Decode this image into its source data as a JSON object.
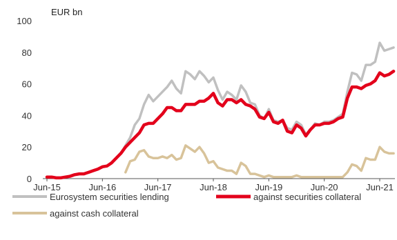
{
  "chart_data": {
    "type": "line",
    "unit_label": "EUR bn",
    "ylim": [
      0,
      100
    ],
    "yticks": [
      0,
      20,
      40,
      60,
      80,
      100
    ],
    "xlim": [
      "2015-06",
      "2021-09"
    ],
    "xticks": [
      {
        "date": "2015-06",
        "label": "Jun-15"
      },
      {
        "date": "2016-06",
        "label": "Jun-16"
      },
      {
        "date": "2017-06",
        "label": "Jun-17"
      },
      {
        "date": "2018-06",
        "label": "Jun-18"
      },
      {
        "date": "2019-06",
        "label": "Jun-19"
      },
      {
        "date": "2020-06",
        "label": "Jun-20"
      },
      {
        "date": "2021-06",
        "label": "Jun-21"
      }
    ],
    "grid": false,
    "legend_placement": "bottom",
    "series": [
      {
        "name": "Eurosystem securities lending",
        "color": "#c0c0c0",
        "points": [
          [
            "2015-06",
            1
          ],
          [
            "2015-07",
            1
          ],
          [
            "2015-08",
            0.5
          ],
          [
            "2015-09",
            0.5
          ],
          [
            "2015-10",
            1
          ],
          [
            "2015-11",
            1.5
          ],
          [
            "2015-12",
            2.5
          ],
          [
            "2016-01",
            3
          ],
          [
            "2016-02",
            3
          ],
          [
            "2016-03",
            4
          ],
          [
            "2016-04",
            5
          ],
          [
            "2016-05",
            6
          ],
          [
            "2016-06",
            7.5
          ],
          [
            "2016-07",
            8
          ],
          [
            "2016-08",
            10
          ],
          [
            "2016-09",
            13
          ],
          [
            "2016-10",
            16
          ],
          [
            "2016-11",
            21
          ],
          [
            "2016-12",
            26
          ],
          [
            "2017-01",
            34
          ],
          [
            "2017-02",
            38
          ],
          [
            "2017-03",
            47
          ],
          [
            "2017-04",
            53
          ],
          [
            "2017-05",
            49
          ],
          [
            "2017-06",
            52
          ],
          [
            "2017-07",
            55
          ],
          [
            "2017-08",
            58
          ],
          [
            "2017-09",
            62
          ],
          [
            "2017-10",
            57
          ],
          [
            "2017-11",
            54
          ],
          [
            "2017-12",
            68
          ],
          [
            "2018-01",
            66
          ],
          [
            "2018-02",
            63
          ],
          [
            "2018-03",
            68
          ],
          [
            "2018-04",
            65
          ],
          [
            "2018-05",
            61
          ],
          [
            "2018-06",
            64
          ],
          [
            "2018-07",
            56
          ],
          [
            "2018-08",
            50
          ],
          [
            "2018-09",
            55
          ],
          [
            "2018-10",
            53
          ],
          [
            "2018-11",
            50
          ],
          [
            "2018-12",
            59
          ],
          [
            "2019-01",
            55
          ],
          [
            "2019-02",
            48
          ],
          [
            "2019-03",
            47
          ],
          [
            "2019-04",
            40
          ],
          [
            "2019-05",
            38
          ],
          [
            "2019-06",
            44
          ],
          [
            "2019-07",
            37
          ],
          [
            "2019-08",
            36
          ],
          [
            "2019-09",
            37
          ],
          [
            "2019-10",
            32
          ],
          [
            "2019-11",
            31
          ],
          [
            "2019-12",
            36
          ],
          [
            "2020-01",
            34
          ],
          [
            "2020-02",
            28
          ],
          [
            "2020-03",
            31
          ],
          [
            "2020-04",
            35
          ],
          [
            "2020-05",
            34
          ],
          [
            "2020-06",
            36
          ],
          [
            "2020-07",
            36
          ],
          [
            "2020-08",
            37
          ],
          [
            "2020-09",
            39
          ],
          [
            "2020-10",
            41
          ],
          [
            "2020-11",
            55
          ],
          [
            "2020-12",
            67
          ],
          [
            "2021-01",
            66
          ],
          [
            "2021-02",
            62
          ],
          [
            "2021-03",
            72
          ],
          [
            "2021-04",
            72
          ],
          [
            "2021-05",
            74
          ],
          [
            "2021-06",
            86
          ],
          [
            "2021-07",
            81
          ],
          [
            "2021-08",
            82
          ],
          [
            "2021-09",
            83
          ]
        ]
      },
      {
        "name": "against securities collateral",
        "color": "#e3001b",
        "points": [
          [
            "2015-06",
            1
          ],
          [
            "2015-07",
            1
          ],
          [
            "2015-08",
            0.5
          ],
          [
            "2015-09",
            0.5
          ],
          [
            "2015-10",
            1
          ],
          [
            "2015-11",
            1.5
          ],
          [
            "2015-12",
            2.5
          ],
          [
            "2016-01",
            3
          ],
          [
            "2016-02",
            3
          ],
          [
            "2016-03",
            4
          ],
          [
            "2016-04",
            5
          ],
          [
            "2016-05",
            6
          ],
          [
            "2016-06",
            7.5
          ],
          [
            "2016-07",
            8
          ],
          [
            "2016-08",
            10
          ],
          [
            "2016-09",
            13
          ],
          [
            "2016-10",
            16
          ],
          [
            "2016-11",
            20
          ],
          [
            "2016-12",
            23
          ],
          [
            "2017-01",
            26
          ],
          [
            "2017-02",
            29
          ],
          [
            "2017-03",
            34
          ],
          [
            "2017-04",
            35
          ],
          [
            "2017-05",
            35
          ],
          [
            "2017-06",
            38
          ],
          [
            "2017-07",
            41
          ],
          [
            "2017-08",
            45
          ],
          [
            "2017-09",
            45
          ],
          [
            "2017-10",
            43
          ],
          [
            "2017-11",
            43
          ],
          [
            "2017-12",
            47
          ],
          [
            "2018-01",
            47
          ],
          [
            "2018-02",
            47
          ],
          [
            "2018-03",
            49
          ],
          [
            "2018-04",
            49
          ],
          [
            "2018-05",
            51
          ],
          [
            "2018-06",
            54
          ],
          [
            "2018-07",
            48
          ],
          [
            "2018-08",
            46
          ],
          [
            "2018-09",
            50
          ],
          [
            "2018-10",
            50
          ],
          [
            "2018-11",
            48
          ],
          [
            "2018-12",
            50
          ],
          [
            "2019-01",
            47
          ],
          [
            "2019-02",
            46
          ],
          [
            "2019-03",
            44
          ],
          [
            "2019-04",
            39
          ],
          [
            "2019-05",
            38
          ],
          [
            "2019-06",
            42
          ],
          [
            "2019-07",
            36
          ],
          [
            "2019-08",
            35
          ],
          [
            "2019-09",
            37
          ],
          [
            "2019-10",
            30
          ],
          [
            "2019-11",
            29
          ],
          [
            "2019-12",
            34
          ],
          [
            "2020-01",
            32
          ],
          [
            "2020-02",
            27
          ],
          [
            "2020-03",
            31
          ],
          [
            "2020-04",
            34
          ],
          [
            "2020-05",
            34
          ],
          [
            "2020-06",
            35
          ],
          [
            "2020-07",
            35
          ],
          [
            "2020-08",
            36
          ],
          [
            "2020-09",
            38
          ],
          [
            "2020-10",
            39
          ],
          [
            "2020-11",
            51
          ],
          [
            "2020-12",
            58
          ],
          [
            "2021-01",
            58
          ],
          [
            "2021-02",
            57
          ],
          [
            "2021-03",
            59
          ],
          [
            "2021-04",
            60
          ],
          [
            "2021-05",
            62
          ],
          [
            "2021-06",
            67
          ],
          [
            "2021-07",
            65
          ],
          [
            "2021-08",
            66
          ],
          [
            "2021-09",
            68
          ]
        ]
      },
      {
        "name": "against cash collateral",
        "color": "#d8c39a",
        "points": [
          [
            "2016-11",
            4
          ],
          [
            "2016-12",
            11
          ],
          [
            "2017-01",
            12
          ],
          [
            "2017-02",
            17
          ],
          [
            "2017-03",
            18
          ],
          [
            "2017-04",
            14
          ],
          [
            "2017-05",
            13
          ],
          [
            "2017-06",
            13
          ],
          [
            "2017-07",
            14
          ],
          [
            "2017-08",
            13
          ],
          [
            "2017-09",
            15
          ],
          [
            "2017-10",
            12
          ],
          [
            "2017-11",
            13
          ],
          [
            "2017-12",
            21
          ],
          [
            "2018-01",
            19
          ],
          [
            "2018-02",
            17
          ],
          [
            "2018-03",
            20
          ],
          [
            "2018-04",
            16
          ],
          [
            "2018-05",
            10
          ],
          [
            "2018-06",
            11
          ],
          [
            "2018-07",
            7
          ],
          [
            "2018-08",
            6
          ],
          [
            "2018-09",
            5
          ],
          [
            "2018-10",
            5
          ],
          [
            "2018-11",
            3
          ],
          [
            "2018-12",
            10
          ],
          [
            "2019-01",
            8
          ],
          [
            "2019-02",
            3
          ],
          [
            "2019-03",
            3
          ],
          [
            "2019-04",
            2
          ],
          [
            "2019-05",
            1
          ],
          [
            "2019-06",
            2
          ],
          [
            "2019-07",
            1
          ],
          [
            "2019-08",
            1
          ],
          [
            "2019-09",
            1
          ],
          [
            "2019-10",
            1
          ],
          [
            "2019-11",
            1
          ],
          [
            "2019-12",
            2
          ],
          [
            "2020-01",
            1
          ],
          [
            "2020-02",
            1
          ],
          [
            "2020-03",
            1
          ],
          [
            "2020-04",
            1
          ],
          [
            "2020-05",
            1
          ],
          [
            "2020-06",
            1
          ],
          [
            "2020-07",
            1
          ],
          [
            "2020-08",
            1
          ],
          [
            "2020-09",
            1
          ],
          [
            "2020-10",
            1
          ],
          [
            "2020-11",
            4
          ],
          [
            "2020-12",
            9
          ],
          [
            "2021-01",
            8
          ],
          [
            "2021-02",
            5
          ],
          [
            "2021-03",
            13
          ],
          [
            "2021-04",
            12
          ],
          [
            "2021-05",
            12
          ],
          [
            "2021-06",
            20
          ],
          [
            "2021-07",
            17
          ],
          [
            "2021-08",
            16
          ],
          [
            "2021-09",
            16
          ]
        ]
      }
    ]
  }
}
